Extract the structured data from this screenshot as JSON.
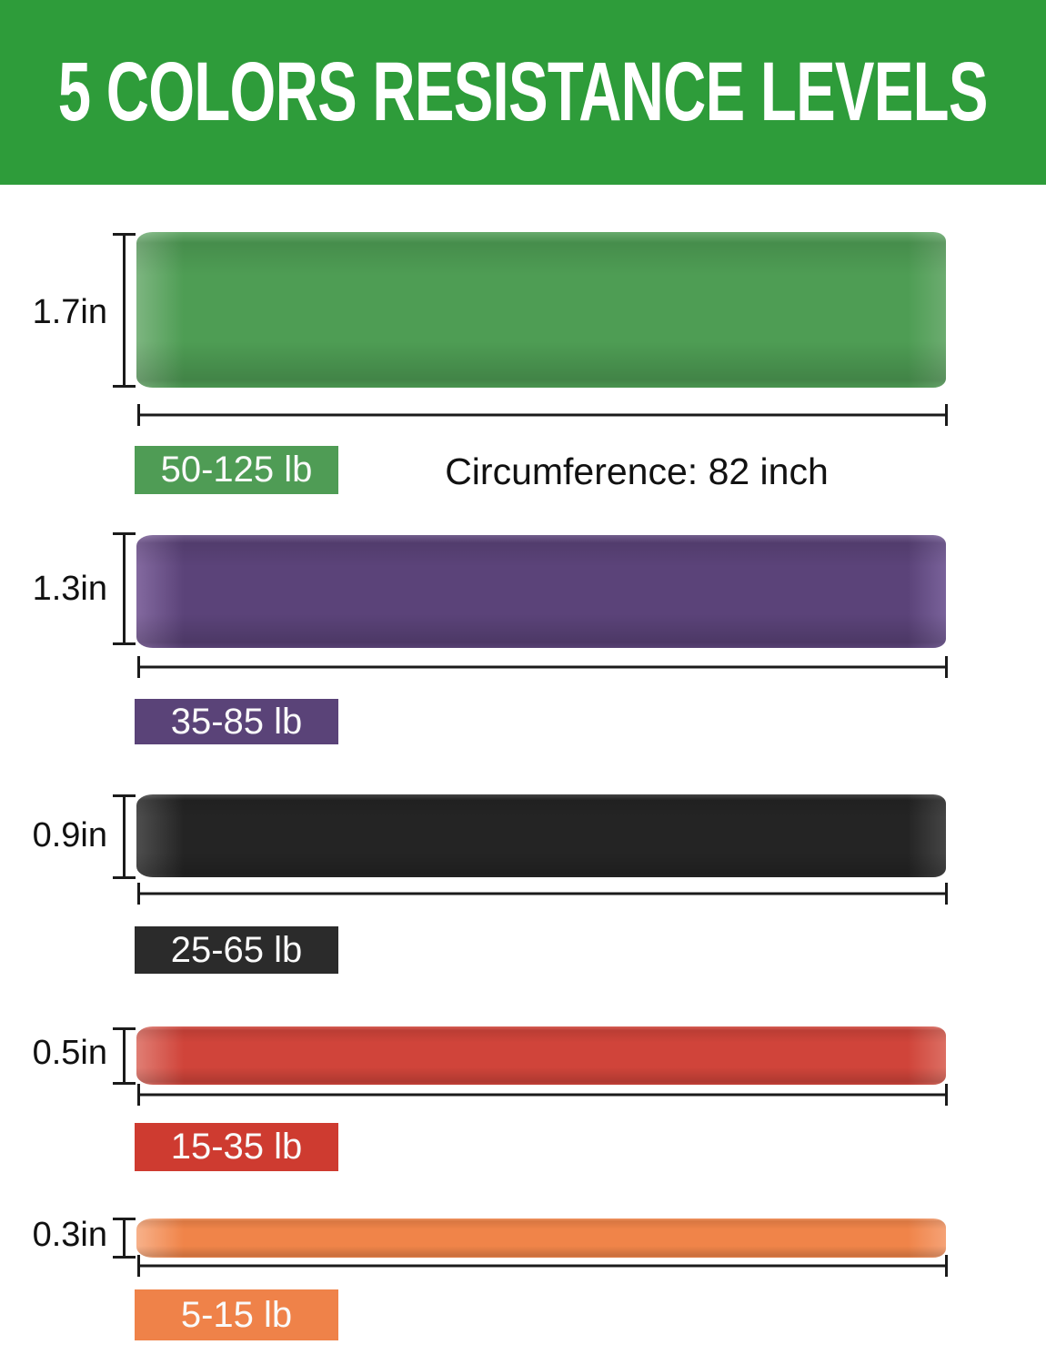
{
  "header": {
    "title": "5 COLORS RESISTANCE LEVELS",
    "bg_color": "#2E9C3A",
    "text_color": "#FFFFFF"
  },
  "circumference_note": "Circumference: 82 inch",
  "dimension_color": "#1B1B1B",
  "bands": [
    {
      "color_name": "green",
      "width_label": "1.7in",
      "resistance_label": "50-125 lb",
      "colors": {
        "main": "#4E9D54",
        "light": "#7DB580",
        "edge": "#6CAC70",
        "label_bg": "#4F9C55"
      }
    },
    {
      "color_name": "purple",
      "width_label": "1.3in",
      "resistance_label": "35-85 lb",
      "colors": {
        "main": "#5B4379",
        "light": "#83699F",
        "edge": "#79629A",
        "label_bg": "#5A4378"
      }
    },
    {
      "color_name": "black",
      "width_label": "0.9in",
      "resistance_label": "25-65 lb",
      "colors": {
        "main": "#242424",
        "light": "#4E4E4E",
        "edge": "#454545",
        "label_bg": "#2B2B2B"
      }
    },
    {
      "color_name": "red",
      "width_label": "0.5in",
      "resistance_label": "15-35 lb",
      "colors": {
        "main": "#D0443A",
        "light": "#E07E74",
        "edge": "#DC6F63",
        "label_bg": "#CE3B30"
      }
    },
    {
      "color_name": "orange",
      "width_label": "0.3in",
      "resistance_label": "5-15 lb",
      "colors": {
        "main": "#F08449",
        "light": "#F7B18A",
        "edge": "#F5A276",
        "label_bg": "#EF8249"
      }
    }
  ]
}
